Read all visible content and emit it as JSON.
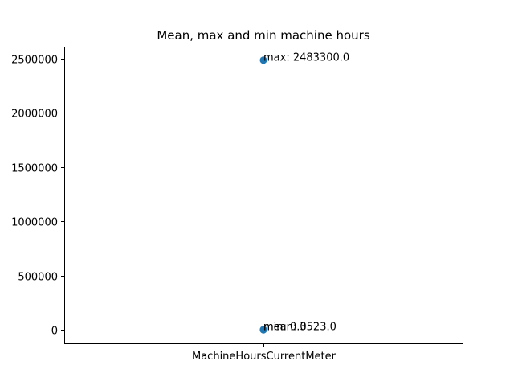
{
  "chart_data": {
    "type": "scatter",
    "title": "Mean, max and min machine hours",
    "xlabel": "",
    "ylabel": "",
    "categories": [
      "MachineHoursCurrentMeter"
    ],
    "points": [
      {
        "category": "MachineHoursCurrentMeter",
        "stat": "max",
        "value": 2483300.0,
        "label": "max: 2483300.0"
      },
      {
        "category": "MachineHoursCurrentMeter",
        "stat": "mean",
        "value": 3523.0,
        "label": "mean: 3523.0"
      },
      {
        "category": "MachineHoursCurrentMeter",
        "stat": "min",
        "value": 0.0,
        "label": "min: 0.0"
      }
    ],
    "yticks": [
      0,
      500000,
      1000000,
      1500000,
      2000000,
      2500000
    ],
    "ylim": [
      -124165,
      2607465
    ],
    "grid": false,
    "marker_color": "#1f77b4"
  }
}
